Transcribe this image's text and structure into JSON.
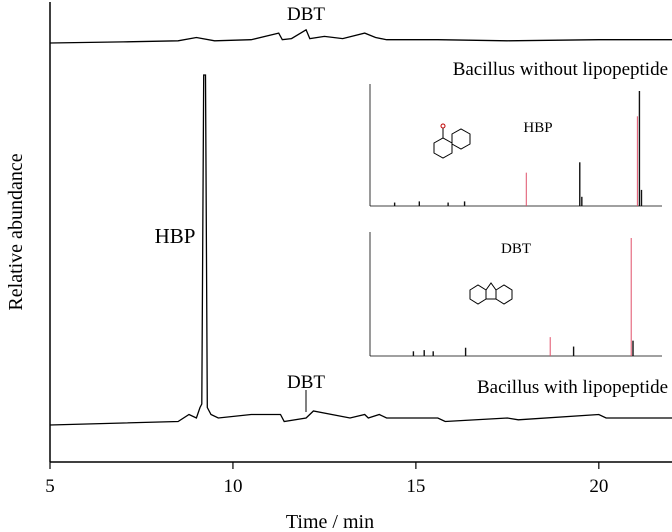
{
  "chart_data": {
    "type": "line",
    "xlabel": "Time / min",
    "ylabel": "Relative abundance",
    "xlim": [
      5,
      22
    ],
    "xticks": [
      5,
      10,
      15,
      20
    ],
    "series": [
      {
        "name": "Bacillus without lipopeptide",
        "x": [
          5,
          7,
          8.5,
          9,
          9.5,
          10.5,
          11.25,
          11.35,
          11.6,
          12.0,
          12.1,
          12.5,
          13.0,
          13.6,
          13.9,
          14.2,
          15.6,
          17.5,
          20.0,
          22
        ],
        "y": [
          0,
          0.01,
          0.02,
          0.05,
          0.02,
          0.03,
          0.09,
          0.03,
          0.04,
          0.12,
          0.04,
          0.06,
          0.04,
          0.09,
          0.05,
          0.03,
          0.03,
          0.02,
          0.03,
          0.03
        ]
      },
      {
        "name": "Bacillus with lipopeptide",
        "x": [
          5,
          8.5,
          8.8,
          9.0,
          9.1,
          9.15,
          9.2,
          9.25,
          9.3,
          9.4,
          9.6,
          10.5,
          11.3,
          11.4,
          12.0,
          12.2,
          13.2,
          13.6,
          13.7,
          14.0,
          14.2,
          15.6,
          15.8,
          17.5,
          17.8,
          20.0,
          20.2,
          22
        ],
        "y": [
          0,
          0.01,
          0.03,
          0.02,
          0.05,
          0.06,
          1.0,
          1.0,
          0.05,
          0.03,
          0.02,
          0.03,
          0.03,
          0.01,
          0.02,
          0.04,
          0.02,
          0.03,
          0.02,
          0.03,
          0.02,
          0.02,
          0.01,
          0.02,
          0.015,
          0.03,
          0.02,
          0.02
        ]
      }
    ],
    "annotations": [
      {
        "text": "DBT",
        "x": 12.0,
        "trace": "top"
      },
      {
        "text": "Bacillus without lipopeptide",
        "trace": "top"
      },
      {
        "text": "HBP",
        "x": 9.2,
        "trace": "bottom"
      },
      {
        "text": "DBT",
        "x": 12.0,
        "trace": "bottom"
      },
      {
        "text": "Bacillus with lipopeptide",
        "trace": "bottom"
      }
    ],
    "insets": [
      {
        "title": "HBP",
        "type": "bar",
        "peaks": [
          {
            "m": 51,
            "i": 3
          },
          {
            "m": 63,
            "i": 4
          },
          {
            "m": 77,
            "i": 3
          },
          {
            "m": 85,
            "i": 4
          },
          {
            "m": 115,
            "i": 29,
            "color": "red"
          },
          {
            "m": 141,
            "i": 38
          },
          {
            "m": 142,
            "i": 8
          },
          {
            "m": 169,
            "i": 78,
            "color": "red"
          },
          {
            "m": 170,
            "i": 100
          },
          {
            "m": 171,
            "i": 14
          }
        ]
      },
      {
        "title": "DBT",
        "type": "bar",
        "peaks": [
          {
            "m": 63,
            "i": 4
          },
          {
            "m": 69,
            "i": 5
          },
          {
            "m": 74,
            "i": 4
          },
          {
            "m": 92,
            "i": 7
          },
          {
            "m": 139,
            "i": 16,
            "color": "red"
          },
          {
            "m": 152,
            "i": 8
          },
          {
            "m": 184,
            "i": 100,
            "color": "red"
          },
          {
            "m": 185,
            "i": 13
          }
        ]
      }
    ]
  }
}
